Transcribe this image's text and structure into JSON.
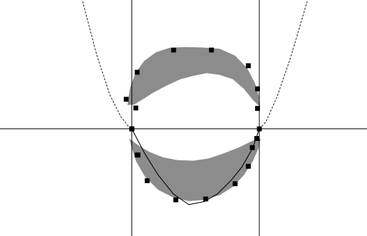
{
  "chart_data": {
    "type": "scatter",
    "title": "",
    "xlabel": "",
    "ylabel": "",
    "xlim": [
      -3,
      5.35
    ],
    "ylim": [
      -2.46,
      2.96
    ],
    "grid": false,
    "legend": "none",
    "colors": {
      "background": "#ffffff",
      "region_fill": "#8c8c8c",
      "lines": "#000000",
      "markers": "#000000"
    },
    "reference_lines": {
      "horizontal_y": [
        0
      ],
      "vertical_x": [
        0,
        2.9
      ]
    },
    "series": [
      {
        "kind": "marker",
        "x": [
          0,
          0.12,
          -0.13,
          0.09,
          0.12,
          0.95,
          1.81,
          2.65,
          2.86,
          2.86,
          2.9,
          0,
          0.14,
          0.35,
          1.0,
          1.68,
          2.35,
          2.65,
          2.74,
          2.84
        ],
        "y": [
          0,
          1.3,
          0.68,
          0.48,
          -0.6,
          1.81,
          1.81,
          1.45,
          0.92,
          0.47,
          0,
          0,
          -0.6,
          -1.19,
          -1.63,
          -1.61,
          -1.26,
          -0.86,
          -0.43,
          -0.22
        ]
      },
      {
        "kind": "curve",
        "style": "dashed",
        "x": [
          -1.12,
          -0.8,
          -0.5,
          -0.25,
          -0.05,
          0.0
        ],
        "y": [
          2.93,
          1.7,
          0.78,
          0.28,
          0.02,
          0.0
        ]
      },
      {
        "kind": "curve",
        "style": "dashed",
        "x": [
          2.9,
          3.05,
          3.3,
          3.6,
          3.85,
          3.99
        ],
        "y": [
          0.0,
          0.16,
          0.73,
          1.6,
          2.45,
          2.93
        ]
      },
      {
        "kind": "curve",
        "style": "solid",
        "x": [
          0.0,
          0.3,
          0.6,
          0.95,
          1.3,
          1.65,
          1.95,
          2.25,
          2.5,
          2.75,
          2.9
        ],
        "y": [
          0.0,
          -0.58,
          -1.06,
          -1.5,
          -1.74,
          -1.67,
          -1.49,
          -1.19,
          -0.88,
          -0.44,
          0.0
        ]
      },
      {
        "kind": "filled-region",
        "label": "upper-band",
        "outer_x": [
          -0.1,
          -0.04,
          0.08,
          0.28,
          0.55,
          0.85,
          1.2,
          1.6,
          2.0,
          2.35,
          2.62,
          2.8,
          2.9,
          2.92
        ],
        "outer_y": [
          0.55,
          0.95,
          1.28,
          1.56,
          1.76,
          1.86,
          1.88,
          1.87,
          1.84,
          1.68,
          1.4,
          1.05,
          0.72,
          0.5
        ],
        "inner_x": [
          2.92,
          2.75,
          2.55,
          2.3,
          2.0,
          1.7,
          1.4,
          1.1,
          0.8,
          0.5,
          0.25,
          0.05,
          -0.1
        ],
        "inner_y": [
          0.5,
          0.67,
          0.92,
          1.14,
          1.24,
          1.28,
          1.22,
          1.14,
          1.0,
          0.84,
          0.68,
          0.56,
          0.55
        ]
      },
      {
        "kind": "filled-region",
        "label": "lower-band",
        "outer_x": [
          -0.06,
          0.0,
          0.1,
          0.3,
          0.6,
          0.95,
          1.3,
          1.65,
          2.0,
          2.3,
          2.55,
          2.75,
          2.88,
          2.93
        ],
        "outer_y": [
          -0.22,
          -0.45,
          -0.75,
          -1.1,
          -1.4,
          -1.58,
          -1.66,
          -1.63,
          -1.52,
          -1.33,
          -1.06,
          -0.75,
          -0.45,
          -0.22
        ],
        "inner_x": [
          2.93,
          2.75,
          2.45,
          2.1,
          1.75,
          1.4,
          1.05,
          0.7,
          0.4,
          0.15,
          -0.06
        ],
        "inner_y": [
          -0.22,
          -0.27,
          -0.42,
          -0.56,
          -0.68,
          -0.73,
          -0.72,
          -0.65,
          -0.53,
          -0.38,
          -0.22
        ]
      }
    ]
  }
}
